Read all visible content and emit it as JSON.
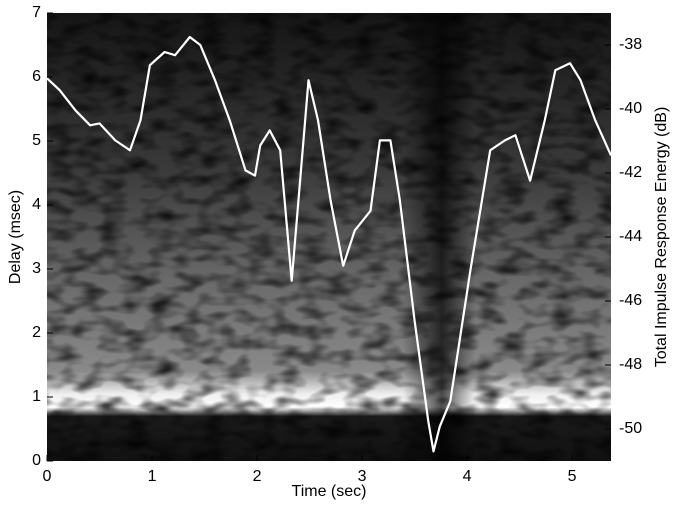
{
  "chart_data": {
    "type": "line",
    "xlabel": "Time (sec)",
    "ylabel": "Delay (msec)",
    "y2label": "Total Impulse Response Energy (dB)",
    "xlim": [
      0,
      5.37
    ],
    "xticks": [
      0,
      1,
      2,
      3,
      4,
      5
    ],
    "ylim": [
      0,
      7
    ],
    "yticks": [
      0,
      1,
      2,
      3,
      4,
      5,
      6,
      7
    ],
    "y2lim": [
      -51,
      -37
    ],
    "y2ticks": [
      -38,
      -40,
      -42,
      -44,
      -46,
      -48,
      -50
    ],
    "x": [
      0,
      0.12,
      0.27,
      0.41,
      0.5,
      0.65,
      0.79,
      0.89,
      0.98,
      1.12,
      1.22,
      1.36,
      1.46,
      1.6,
      1.74,
      1.89,
      1.98,
      2.03,
      2.12,
      2.22,
      2.33,
      2.41,
      2.49,
      2.58,
      2.7,
      2.82,
      2.93,
      3.08,
      3.17,
      3.27,
      3.36,
      3.5,
      3.63,
      3.68,
      3.74,
      3.84,
      4.03,
      4.22,
      4.36,
      4.46,
      4.6,
      4.74,
      4.84,
      4.98,
      5.08,
      5.22,
      5.37
    ],
    "series": [
      {
        "color": "#ffffff",
        "axis": "y2",
        "values": [
          -39.04,
          -39.41,
          -40.04,
          -40.51,
          -40.45,
          -40.98,
          -41.29,
          -40.35,
          -38.63,
          -38.22,
          -38.32,
          -37.75,
          -38.0,
          -39.1,
          -40.35,
          -41.92,
          -42.08,
          -41.14,
          -40.67,
          -41.29,
          -45.37,
          -42.24,
          -39.1,
          -40.35,
          -42.86,
          -44.9,
          -43.8,
          -43.18,
          -40.98,
          -40.98,
          -42.86,
          -46.62,
          -49.76,
          -50.7,
          -49.92,
          -49.13,
          -45.06,
          -41.29,
          -40.98,
          -40.82,
          -42.24,
          -40.35,
          -38.79,
          -38.57,
          -39.1,
          -40.35,
          -41.45
        ]
      }
    ]
  }
}
